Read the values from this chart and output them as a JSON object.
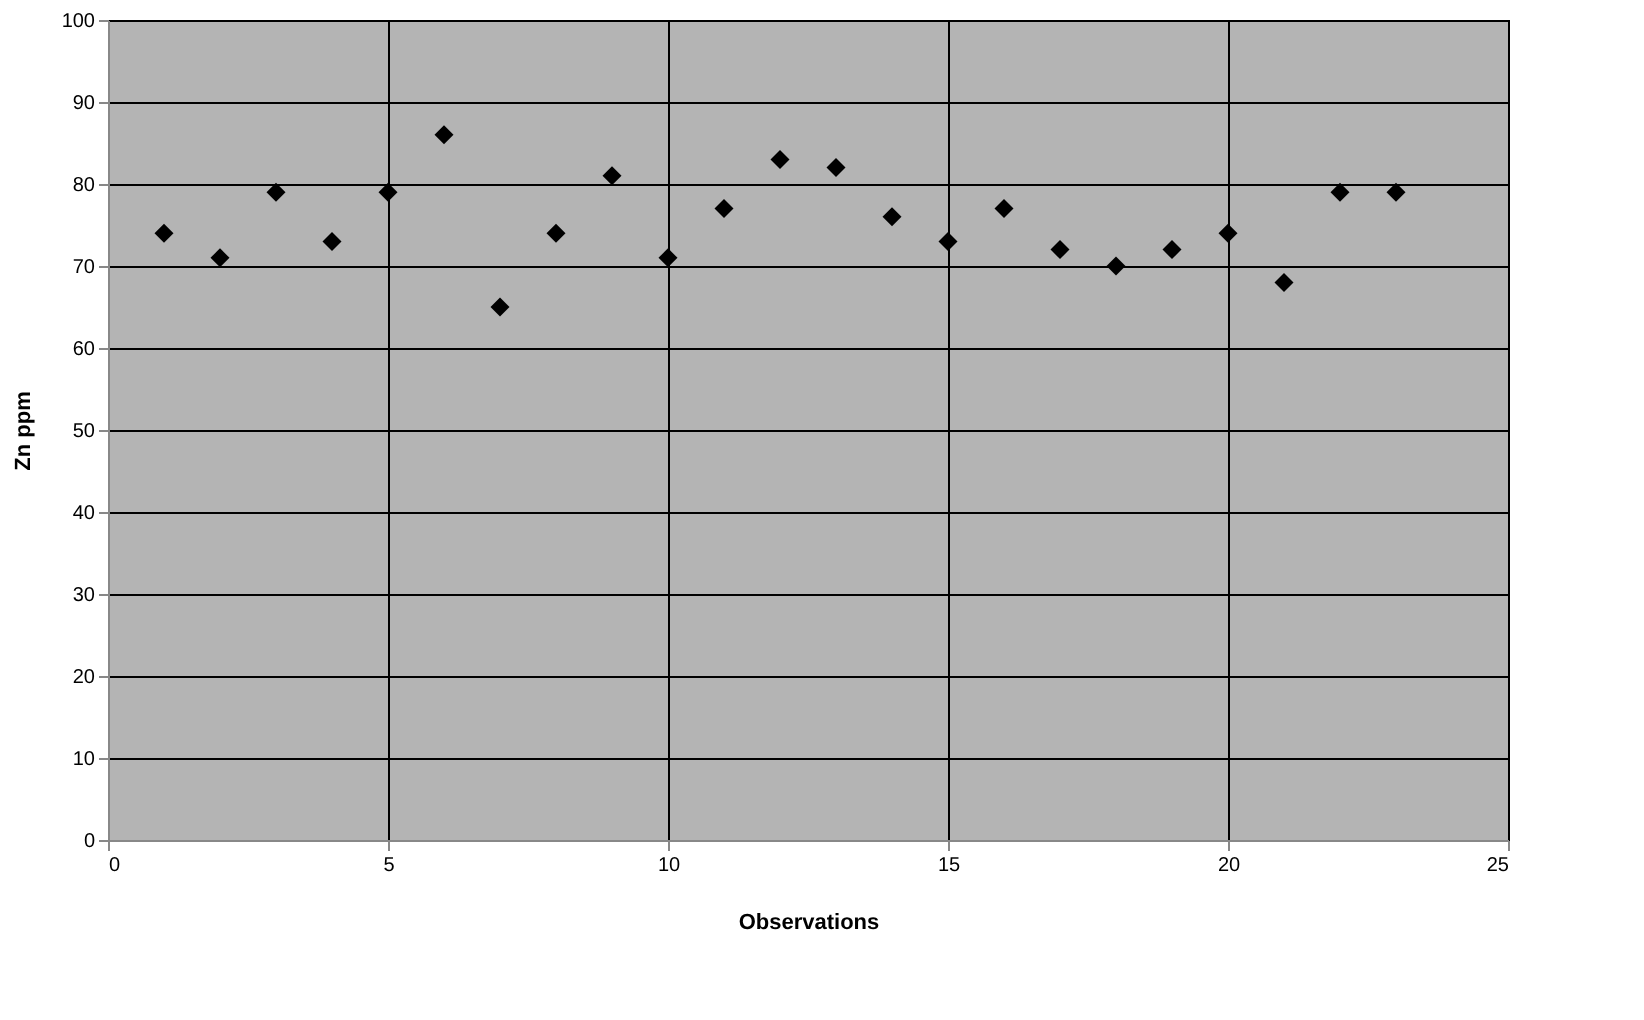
{
  "chart_data": {
    "type": "scatter",
    "xlabel": "Observations",
    "ylabel": "Zn ppm",
    "x": [
      1,
      2,
      3,
      4,
      5,
      6,
      7,
      8,
      9,
      10,
      11,
      12,
      13,
      14,
      15,
      16,
      17,
      18,
      19,
      20,
      21,
      22,
      23
    ],
    "series": [
      {
        "color": "#000000",
        "values": [
          74,
          71,
          79,
          73,
          79,
          86,
          65,
          74,
          81,
          71,
          77,
          83,
          82,
          76,
          73,
          77,
          72,
          70,
          72,
          74,
          68,
          79,
          79
        ]
      }
    ],
    "xlim": [
      0,
      25
    ],
    "xticks": [
      0,
      5,
      10,
      15,
      20,
      25
    ],
    "ylim": [
      0,
      100
    ],
    "yticks": [
      0,
      10,
      20,
      30,
      40,
      50,
      60,
      70,
      80,
      90,
      100
    ],
    "grid": true,
    "marker": "diamond"
  }
}
